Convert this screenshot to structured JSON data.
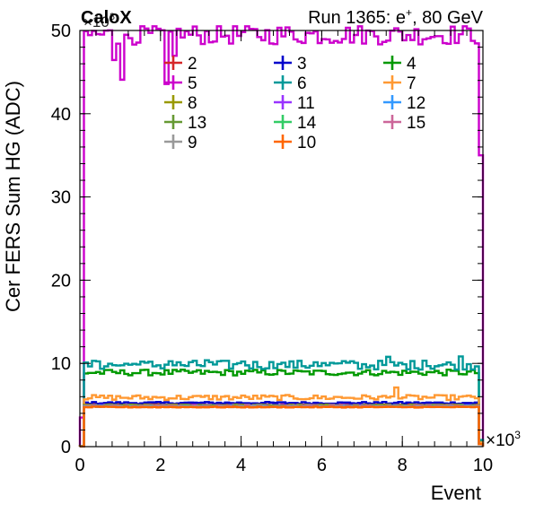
{
  "header": {
    "label": "CaloX",
    "run": "Run 1365: e",
    "run_sup": "+",
    "run_tail": ", 80 GeV"
  },
  "chart_data": {
    "type": "line",
    "title": "",
    "xlabel": "Event",
    "ylabel": "Cer FERS Sum HG (ADC)",
    "x_multiplier": "×10",
    "x_multiplier_exp": "3",
    "y_multiplier": "×10",
    "y_multiplier_exp": "3",
    "xlim": [
      0,
      10
    ],
    "ylim": [
      0,
      50
    ],
    "x_ticks": [
      "0",
      "2",
      "4",
      "6",
      "8",
      "10"
    ],
    "y_ticks": [
      "0",
      "10",
      "20",
      "30",
      "40",
      "50"
    ],
    "grid": false,
    "legend_placement": "top",
    "step_histogram": true,
    "n_bins": 100,
    "series": [
      {
        "name": "2",
        "color": "#d62728",
        "level": 5.05,
        "noise": 0.06,
        "edge": 0.3
      },
      {
        "name": "3",
        "color": "#0000cc",
        "level": 5.25,
        "noise": 0.12,
        "edge": 0.3
      },
      {
        "name": "4",
        "color": "#009900",
        "level": 8.9,
        "noise": 0.35,
        "edge": 0.6
      },
      {
        "name": "5",
        "color": "#cc00cc",
        "level": 49.5,
        "noise": 1.2,
        "edge": 35.0
      },
      {
        "name": "6",
        "color": "#009999",
        "level": 9.8,
        "noise": 0.55,
        "edge": 0.8
      },
      {
        "name": "7",
        "color": "#ff9933",
        "level": 5.9,
        "noise": 0.3,
        "edge": 0.5
      },
      {
        "name": "8",
        "color": "#999900",
        "level": 5.0,
        "noise": 0.06,
        "edge": 0.3
      },
      {
        "name": "11",
        "color": "#9933ff",
        "level": 4.95,
        "noise": 0.05,
        "edge": 0.3
      },
      {
        "name": "12",
        "color": "#3399ff",
        "level": 4.9,
        "noise": 0.05,
        "edge": 0.3
      },
      {
        "name": "13",
        "color": "#669933",
        "level": 4.9,
        "noise": 0.05,
        "edge": 0.3
      },
      {
        "name": "14",
        "color": "#33cc66",
        "level": 4.85,
        "noise": 0.05,
        "edge": 0.3
      },
      {
        "name": "15",
        "color": "#cc6699",
        "level": 4.85,
        "noise": 0.05,
        "edge": 0.3
      },
      {
        "name": "9",
        "color": "#999999",
        "level": 4.8,
        "noise": 0.05,
        "edge": 0.3
      },
      {
        "name": "10",
        "color": "#ff6600",
        "level": 4.75,
        "noise": 0.05,
        "edge": 0.3
      }
    ]
  }
}
